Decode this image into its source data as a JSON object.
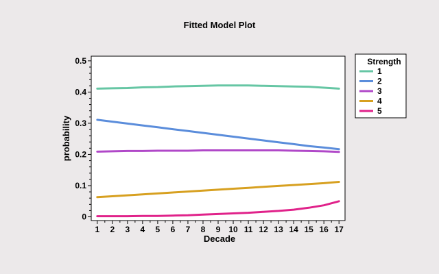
{
  "chart_data": {
    "type": "line",
    "title": "Fitted Model Plot",
    "xlabel": "Decade",
    "ylabel": "probability",
    "x": [
      1,
      2,
      3,
      4,
      5,
      6,
      7,
      8,
      9,
      10,
      11,
      12,
      13,
      14,
      15,
      16,
      17
    ],
    "xlim": [
      0.6,
      17.4
    ],
    "ylim": [
      -0.012,
      0.515
    ],
    "yticks": [
      0,
      0.1,
      0.2,
      0.3,
      0.4,
      0.5
    ],
    "ytick_labels": [
      "0",
      "0.1",
      "0.2",
      "0.3",
      "0.4",
      "0.5"
    ],
    "grid": false,
    "legend": {
      "title": "Strength",
      "placement": "right"
    },
    "series": [
      {
        "name": "1",
        "color": "#66c6a4",
        "values": [
          0.411,
          0.412,
          0.413,
          0.415,
          0.416,
          0.418,
          0.419,
          0.42,
          0.421,
          0.421,
          0.421,
          0.42,
          0.419,
          0.418,
          0.417,
          0.414,
          0.411
        ]
      },
      {
        "name": "2",
        "color": "#5b8ddb",
        "values": [
          0.311,
          0.305,
          0.299,
          0.293,
          0.287,
          0.281,
          0.275,
          0.269,
          0.263,
          0.257,
          0.251,
          0.245,
          0.239,
          0.233,
          0.227,
          0.222,
          0.217
        ]
      },
      {
        "name": "3",
        "color": "#b048c8",
        "values": [
          0.209,
          0.21,
          0.211,
          0.211,
          0.212,
          0.212,
          0.212,
          0.213,
          0.213,
          0.213,
          0.213,
          0.213,
          0.213,
          0.212,
          0.211,
          0.21,
          0.208
        ]
      },
      {
        "name": "4",
        "color": "#d7a020",
        "values": [
          0.063,
          0.066,
          0.069,
          0.072,
          0.075,
          0.078,
          0.081,
          0.084,
          0.087,
          0.09,
          0.093,
          0.096,
          0.099,
          0.102,
          0.105,
          0.108,
          0.112
        ]
      },
      {
        "name": "5",
        "color": "#e0228a",
        "values": [
          0.002,
          0.002,
          0.002,
          0.003,
          0.003,
          0.004,
          0.005,
          0.007,
          0.009,
          0.011,
          0.013,
          0.016,
          0.019,
          0.023,
          0.029,
          0.037,
          0.05
        ]
      }
    ]
  }
}
